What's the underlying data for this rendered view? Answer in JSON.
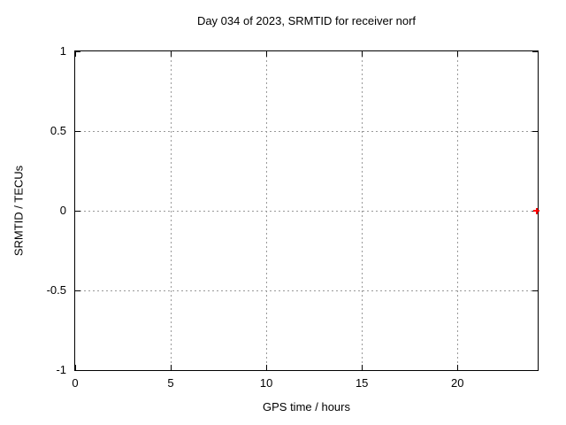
{
  "chart_data": {
    "type": "scatter",
    "title": "Day 034 of 2023, SRMTID for receiver norf",
    "xlabel": "GPS time / hours",
    "ylabel": "SRMTID / TECUs",
    "xlim": [
      0,
      24.2
    ],
    "ylim": [
      -1,
      1
    ],
    "xticks": [
      0,
      5,
      10,
      15,
      20
    ],
    "yticks": [
      -1,
      -0.5,
      0,
      0.5,
      1
    ],
    "grid": true,
    "legend": "none",
    "series": [
      {
        "name": "SRMTID",
        "marker": "plus",
        "color": "#ff0000",
        "points": [
          {
            "x": 24.15,
            "y": 0
          }
        ]
      }
    ]
  },
  "colors": {
    "background": "#ffffff",
    "axis": "#000000",
    "grid": "#999999",
    "text": "#000000"
  }
}
